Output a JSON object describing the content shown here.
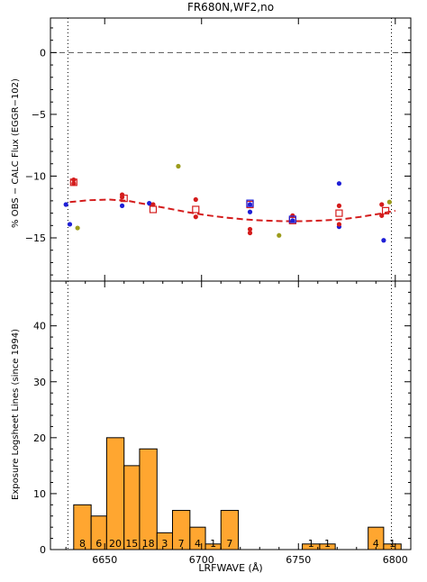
{
  "chart_data": [
    {
      "type": "scatter",
      "title": "FR680N,WF2,no",
      "ylabel": "% OBS − CALC Flux (EGGR−102)",
      "xlim": [
        6622,
        6808
      ],
      "ylim": [
        -18.5,
        2.8
      ],
      "yticks": [
        0,
        -5,
        -10,
        -15
      ],
      "reference_lines": {
        "y": 0,
        "x": [
          6631,
          6798
        ]
      },
      "series": [
        {
          "color": "#1f1fd6",
          "marker": "dot",
          "points": [
            [
              6630,
              -12.3
            ],
            [
              6632,
              -13.9
            ],
            [
              6659,
              -12.4
            ],
            [
              6673,
              -12.2
            ],
            [
              6725,
              -12.3
            ],
            [
              6725,
              -12.9
            ],
            [
              6747,
              -13.6
            ],
            [
              6771,
              -10.6
            ],
            [
              6771,
              -14.1
            ],
            [
              6794,
              -15.2
            ]
          ]
        },
        {
          "color": "#d41c1c",
          "marker": "dot",
          "points": [
            [
              6634,
              -10.3
            ],
            [
              6634,
              -10.6
            ],
            [
              6659,
              -11.5
            ],
            [
              6659,
              -11.7
            ],
            [
              6675,
              -12.3
            ],
            [
              6697,
              -11.9
            ],
            [
              6697,
              -13.3
            ],
            [
              6725,
              -14.3
            ],
            [
              6725,
              -14.6
            ],
            [
              6747,
              -13.2
            ],
            [
              6771,
              -12.4
            ],
            [
              6771,
              -13.9
            ],
            [
              6793,
              -12.3
            ],
            [
              6793,
              -13.2
            ]
          ]
        },
        {
          "color": "#9c9c1c",
          "marker": "dot",
          "points": [
            [
              6636,
              -14.2
            ],
            [
              6688,
              -9.2
            ],
            [
              6740,
              -14.8
            ],
            [
              6797,
              -12.1
            ]
          ]
        },
        {
          "color": "#d41c1c",
          "marker": "open-square",
          "points": [
            [
              6634,
              -10.5
            ],
            [
              6660,
              -11.8
            ],
            [
              6675,
              -12.7
            ],
            [
              6697,
              -12.7
            ],
            [
              6725,
              -12.3
            ],
            [
              6747,
              -13.6
            ],
            [
              6771,
              -13.0
            ],
            [
              6795,
              -12.8
            ]
          ]
        },
        {
          "color": "#1f1fd6",
          "marker": "open-square",
          "points": [
            [
              6725,
              -12.2
            ],
            [
              6747,
              -13.5
            ]
          ]
        }
      ],
      "trend": {
        "color": "#d41c1c",
        "style": "dashed",
        "points": [
          [
            6632,
            -12.1
          ],
          [
            6642,
            -11.95
          ],
          [
            6652,
            -11.9
          ],
          [
            6662,
            -12.0
          ],
          [
            6672,
            -12.3
          ],
          [
            6682,
            -12.6
          ],
          [
            6692,
            -12.9
          ],
          [
            6702,
            -13.15
          ],
          [
            6712,
            -13.35
          ],
          [
            6722,
            -13.5
          ],
          [
            6732,
            -13.6
          ],
          [
            6742,
            -13.65
          ],
          [
            6752,
            -13.65
          ],
          [
            6762,
            -13.6
          ],
          [
            6772,
            -13.5
          ],
          [
            6782,
            -13.3
          ],
          [
            6792,
            -13.05
          ],
          [
            6800,
            -12.8
          ]
        ]
      }
    },
    {
      "type": "bar",
      "xlabel": "LRFWAVE (Å)",
      "ylabel": "Exposure Logsheet Lines (since 1994)",
      "xlim": [
        6622,
        6808
      ],
      "ylim": [
        0,
        48
      ],
      "yticks": [
        0,
        10,
        20,
        30,
        40
      ],
      "xticks": [
        6650,
        6700,
        6750,
        6800
      ],
      "reference_lines": {
        "x": [
          6631,
          6798
        ]
      },
      "bar_color": "#ffa630",
      "bins": [
        {
          "x0": 6634,
          "x1": 6643,
          "value": 8
        },
        {
          "x0": 6643,
          "x1": 6651,
          "value": 6
        },
        {
          "x0": 6651,
          "x1": 6660,
          "value": 20
        },
        {
          "x0": 6660,
          "x1": 6668,
          "value": 15
        },
        {
          "x0": 6668,
          "x1": 6677,
          "value": 18
        },
        {
          "x0": 6677,
          "x1": 6685,
          "value": 3
        },
        {
          "x0": 6685,
          "x1": 6694,
          "value": 7
        },
        {
          "x0": 6694,
          "x1": 6702,
          "value": 4
        },
        {
          "x0": 6702,
          "x1": 6710,
          "value": 1
        },
        {
          "x0": 6710,
          "x1": 6719,
          "value": 7
        },
        {
          "x0": 6752,
          "x1": 6761,
          "value": 1
        },
        {
          "x0": 6761,
          "x1": 6769,
          "value": 1
        },
        {
          "x0": 6786,
          "x1": 6794,
          "value": 4
        },
        {
          "x0": 6794,
          "x1": 6803,
          "value": 1
        }
      ]
    }
  ]
}
